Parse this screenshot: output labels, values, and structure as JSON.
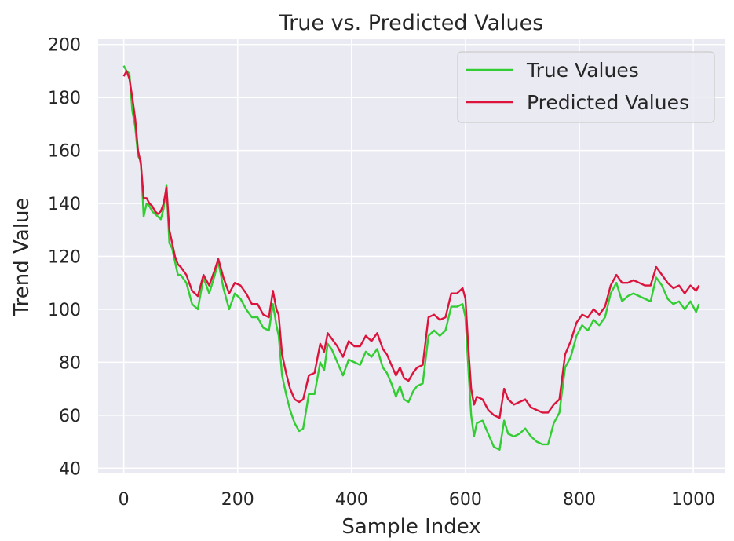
{
  "chart_data": {
    "type": "line",
    "title": "True vs. Predicted Values",
    "xlabel": "Sample Index",
    "ylabel": "Trend Value",
    "xlim": [
      -45,
      1055
    ],
    "ylim": [
      38,
      202
    ],
    "xticks": [
      0,
      200,
      400,
      600,
      800,
      1000
    ],
    "yticks": [
      40,
      60,
      80,
      100,
      120,
      140,
      160,
      180,
      200
    ],
    "grid": true,
    "legend_position": "top-right",
    "background_color": "#eaeaf2",
    "series": [
      {
        "name": "True Values",
        "color": "#32cd32",
        "x": [
          0,
          5,
          10,
          15,
          20,
          25,
          30,
          35,
          40,
          45,
          50,
          55,
          60,
          65,
          70,
          75,
          80,
          85,
          90,
          95,
          100,
          110,
          120,
          130,
          140,
          150,
          160,
          166,
          175,
          185,
          195,
          205,
          215,
          225,
          235,
          245,
          255,
          262,
          268,
          272,
          278,
          285,
          292,
          300,
          308,
          315,
          325,
          335,
          345,
          352,
          358,
          365,
          375,
          385,
          395,
          405,
          415,
          425,
          435,
          445,
          455,
          462,
          470,
          478,
          485,
          492,
          500,
          508,
          515,
          525,
          535,
          545,
          555,
          565,
          575,
          585,
          595,
          600,
          605,
          610,
          615,
          620,
          630,
          640,
          650,
          660,
          668,
          675,
          685,
          695,
          705,
          715,
          725,
          735,
          745,
          755,
          765,
          775,
          785,
          795,
          805,
          815,
          825,
          835,
          845,
          855,
          865,
          875,
          885,
          895,
          905,
          915,
          925,
          935,
          945,
          955,
          965,
          975,
          985,
          995,
          1005,
          1010
        ],
        "values": [
          192,
          190,
          189,
          175,
          169,
          158,
          156,
          135,
          140,
          139,
          137,
          136,
          135,
          134,
          138,
          147,
          125,
          123,
          118,
          113,
          113,
          110,
          102,
          100,
          112,
          106,
          113,
          118,
          108,
          100,
          106,
          104,
          100,
          97,
          97,
          93,
          92,
          102,
          94,
          90,
          75,
          68,
          62,
          57,
          54,
          55,
          68,
          68,
          80,
          77,
          87,
          85,
          80,
          75,
          81,
          80,
          79,
          84,
          82,
          85,
          78,
          76,
          72,
          67,
          71,
          66,
          65,
          69,
          71,
          72,
          90,
          92,
          90,
          92,
          101,
          101,
          102,
          97,
          78,
          60,
          52,
          57,
          58,
          53,
          48,
          47,
          58,
          53,
          52,
          53,
          55,
          52,
          50,
          49,
          49,
          57,
          61,
          78,
          82,
          90,
          94,
          92,
          96,
          94,
          97,
          106,
          110,
          103,
          105,
          106,
          105,
          104,
          103,
          112,
          109,
          104,
          102,
          103,
          100,
          103,
          99,
          102
        ]
      },
      {
        "name": "Predicted Values",
        "color": "#dc143c",
        "x": [
          0,
          5,
          10,
          15,
          20,
          25,
          30,
          35,
          40,
          45,
          50,
          55,
          60,
          65,
          70,
          75,
          80,
          85,
          90,
          95,
          100,
          110,
          120,
          130,
          140,
          150,
          160,
          166,
          175,
          185,
          195,
          205,
          215,
          225,
          235,
          245,
          255,
          262,
          268,
          272,
          278,
          285,
          292,
          300,
          308,
          315,
          325,
          335,
          345,
          352,
          358,
          365,
          375,
          385,
          395,
          405,
          415,
          425,
          435,
          445,
          455,
          462,
          470,
          478,
          485,
          492,
          500,
          508,
          515,
          525,
          535,
          545,
          555,
          565,
          575,
          585,
          595,
          600,
          605,
          610,
          615,
          620,
          630,
          640,
          650,
          660,
          668,
          675,
          685,
          695,
          705,
          715,
          725,
          735,
          745,
          755,
          765,
          775,
          785,
          795,
          805,
          815,
          825,
          835,
          845,
          855,
          865,
          875,
          885,
          895,
          905,
          915,
          925,
          935,
          945,
          955,
          965,
          975,
          985,
          995,
          1005,
          1010
        ],
        "values": [
          188,
          190,
          187,
          180,
          172,
          160,
          155,
          142,
          142,
          140,
          139,
          137,
          136,
          137,
          140,
          146,
          130,
          125,
          120,
          117,
          116,
          113,
          107,
          105,
          113,
          109,
          115,
          119,
          112,
          106,
          110,
          109,
          106,
          102,
          102,
          98,
          97,
          107,
          100,
          98,
          83,
          76,
          70,
          66,
          65,
          66,
          75,
          76,
          87,
          84,
          91,
          89,
          86,
          82,
          88,
          86,
          86,
          90,
          88,
          91,
          85,
          83,
          79,
          75,
          78,
          74,
          73,
          76,
          78,
          79,
          97,
          98,
          96,
          97,
          106,
          106,
          108,
          104,
          86,
          70,
          64,
          67,
          66,
          62,
          60,
          59,
          70,
          66,
          64,
          65,
          66,
          63,
          62,
          61,
          61,
          64,
          66,
          83,
          88,
          95,
          98,
          97,
          100,
          98,
          101,
          109,
          113,
          110,
          110,
          111,
          110,
          109,
          109,
          116,
          113,
          110,
          108,
          109,
          106,
          109,
          107,
          109
        ]
      }
    ]
  }
}
